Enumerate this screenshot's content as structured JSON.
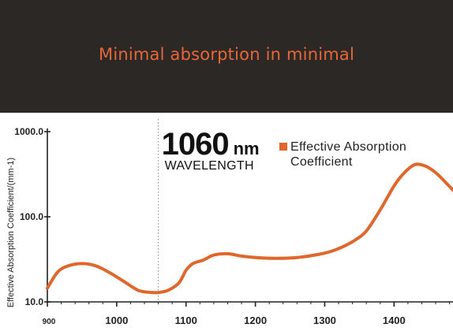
{
  "header": {
    "title": "Minimal absorption in minimal"
  },
  "colors": {
    "header_bg": "#2b2826",
    "accent": "#e8663a",
    "curve": "#e0672b",
    "axis": "#222222"
  },
  "chart_data": {
    "type": "line",
    "title": "",
    "xlabel": "",
    "ylabel": "Effective Absorption Coefficient/(mm-1)",
    "xlim": [
      900,
      1485
    ],
    "ylim": [
      10,
      1000
    ],
    "yscale": "log",
    "x_ticks": [
      "900",
      "1000",
      "1100",
      "1200",
      "1300",
      "1400"
    ],
    "y_ticks": [
      "10.0",
      "100.0",
      "1000.0"
    ],
    "grid": false,
    "legend": {
      "position": "top-right",
      "entries": [
        "Effective Absorption Coefficient"
      ],
      "lines": [
        "Effective Absorption",
        "Coefficient"
      ]
    },
    "annotation": {
      "x": 1060,
      "value": "1060",
      "unit": "nm",
      "label": "WAVELENGTH"
    },
    "series": [
      {
        "name": "Effective Absorption Coefficient",
        "x": [
          900,
          915,
          930,
          950,
          970,
          990,
          1010,
          1030,
          1045,
          1060,
          1075,
          1090,
          1100,
          1110,
          1125,
          1140,
          1160,
          1180,
          1200,
          1230,
          1260,
          1290,
          1310,
          1330,
          1345,
          1360,
          1380,
          1400,
          1415,
          1430,
          1445,
          1460,
          1475,
          1485
        ],
        "y": [
          14.5,
          22.5,
          26.5,
          28.2,
          26.5,
          22.0,
          17.5,
          13.8,
          13.0,
          12.9,
          13.8,
          16.8,
          23.5,
          28.2,
          31.0,
          35.5,
          36.8,
          34.5,
          33.2,
          32.5,
          33.2,
          36.0,
          39.5,
          46.0,
          54.0,
          68.0,
          120.0,
          230.0,
          330.0,
          410.0,
          395.0,
          330.0,
          250.0,
          205.0
        ]
      }
    ]
  }
}
